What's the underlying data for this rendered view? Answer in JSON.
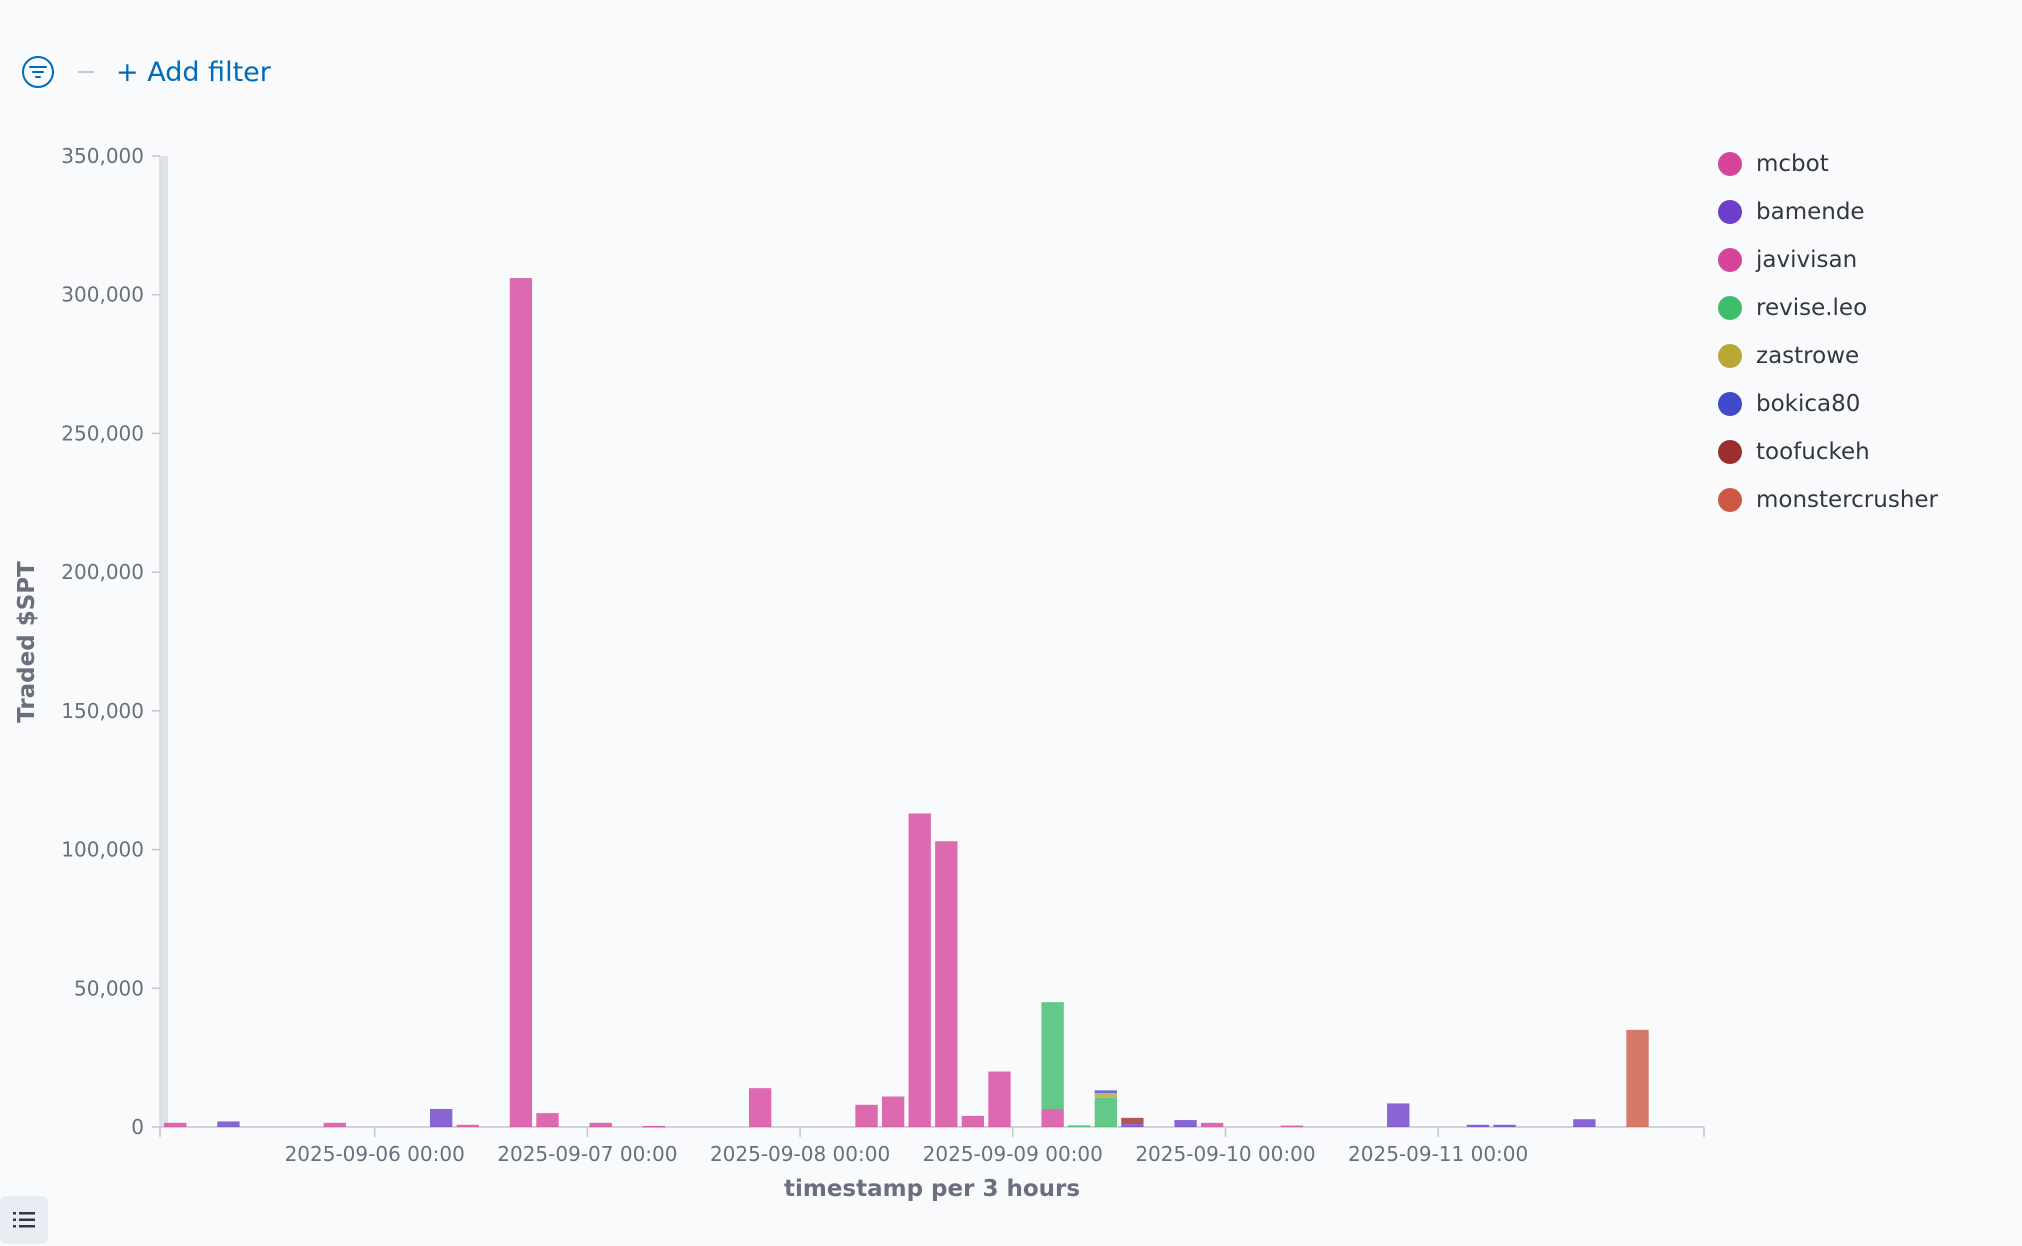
{
  "filter_bar": {
    "icon": "filter-icon",
    "add_filter_label": "+ Add filter"
  },
  "legend_toggle": {
    "icon": "list-icon"
  },
  "legend": {
    "items": [
      {
        "label": "mcbot",
        "color": "#d6459c"
      },
      {
        "label": "bamende",
        "color": "#6b3fc9"
      },
      {
        "label": "javivisan",
        "color": "#d6459c"
      },
      {
        "label": "revise.leo",
        "color": "#3ebd6a"
      },
      {
        "label": "zastrowe",
        "color": "#b9a836"
      },
      {
        "label": "bokica80",
        "color": "#3f4bc9"
      },
      {
        "label": "toofuckeh",
        "color": "#9c2e2e"
      },
      {
        "label": "monstercrusher",
        "color": "#cc5a43"
      }
    ]
  },
  "chart_data": {
    "type": "bar",
    "stacked": true,
    "xlabel": "timestamp per 3 hours",
    "ylabel": "Traded $SPT",
    "ylim": [
      0,
      350000
    ],
    "y_ticks": [
      {
        "value": 0,
        "label": "0"
      },
      {
        "value": 50000,
        "label": "50,000"
      },
      {
        "value": 100000,
        "label": "100,000"
      },
      {
        "value": 150000,
        "label": "150,000"
      },
      {
        "value": 200000,
        "label": "200,000"
      },
      {
        "value": 250000,
        "label": "250,000"
      },
      {
        "value": 300000,
        "label": "300,000"
      },
      {
        "value": 350000,
        "label": "350,000"
      }
    ],
    "x_ticks": [
      {
        "time": "2025-09-06 00:00",
        "label": "2025-09-06 00:00"
      },
      {
        "time": "2025-09-07 00:00",
        "label": "2025-09-07 00:00"
      },
      {
        "time": "2025-09-08 00:00",
        "label": "2025-09-08 00:00"
      },
      {
        "time": "2025-09-09 00:00",
        "label": "2025-09-09 00:00"
      },
      {
        "time": "2025-09-10 00:00",
        "label": "2025-09-10 00:00"
      },
      {
        "time": "2025-09-11 00:00",
        "label": "2025-09-11 00:00"
      }
    ],
    "x_range": [
      "2025-09-05 00:00",
      "2025-09-12 06:00"
    ],
    "bars": [
      {
        "time": "2025-09-05 00:00",
        "segments": [
          {
            "series": "mcbot",
            "value": 1500
          }
        ]
      },
      {
        "time": "2025-09-05 06:00",
        "segments": [
          {
            "series": "bamende",
            "value": 2000
          }
        ]
      },
      {
        "time": "2025-09-05 18:00",
        "segments": [
          {
            "series": "mcbot",
            "value": 1500
          }
        ]
      },
      {
        "time": "2025-09-06 06:00",
        "segments": [
          {
            "series": "bamende",
            "value": 6500
          }
        ]
      },
      {
        "time": "2025-09-06 09:00",
        "segments": [
          {
            "series": "mcbot",
            "value": 800
          }
        ]
      },
      {
        "time": "2025-09-06 15:00",
        "segments": [
          {
            "series": "mcbot",
            "value": 20000
          },
          {
            "series": "javivisan",
            "value": 286000
          }
        ]
      },
      {
        "time": "2025-09-06 18:00",
        "segments": [
          {
            "series": "mcbot",
            "value": 5000
          }
        ]
      },
      {
        "time": "2025-09-07 00:00",
        "segments": [
          {
            "series": "mcbot",
            "value": 1500
          }
        ]
      },
      {
        "time": "2025-09-07 06:00",
        "segments": [
          {
            "series": "mcbot",
            "value": 400
          }
        ]
      },
      {
        "time": "2025-09-07 18:00",
        "segments": [
          {
            "series": "mcbot",
            "value": 14000
          }
        ]
      },
      {
        "time": "2025-09-08 06:00",
        "segments": [
          {
            "series": "mcbot",
            "value": 8000
          }
        ]
      },
      {
        "time": "2025-09-08 09:00",
        "segments": [
          {
            "series": "mcbot",
            "value": 11000
          }
        ]
      },
      {
        "time": "2025-09-08 12:00",
        "segments": [
          {
            "series": "mcbot",
            "value": 113000
          }
        ]
      },
      {
        "time": "2025-09-08 15:00",
        "segments": [
          {
            "series": "mcbot",
            "value": 103000
          }
        ]
      },
      {
        "time": "2025-09-08 18:00",
        "segments": [
          {
            "series": "mcbot",
            "value": 4000
          }
        ]
      },
      {
        "time": "2025-09-08 21:00",
        "segments": [
          {
            "series": "mcbot",
            "value": 20000
          }
        ]
      },
      {
        "time": "2025-09-09 03:00",
        "segments": [
          {
            "series": "mcbot",
            "value": 6500
          },
          {
            "series": "revise.leo",
            "value": 38500
          }
        ]
      },
      {
        "time": "2025-09-09 06:00",
        "segments": [
          {
            "series": "revise.leo",
            "value": 600
          }
        ]
      },
      {
        "time": "2025-09-09 09:00",
        "segments": [
          {
            "series": "revise.leo",
            "value": 10500
          },
          {
            "series": "zastrowe",
            "value": 1700
          },
          {
            "series": "bokica80",
            "value": 1000
          }
        ]
      },
      {
        "time": "2025-09-09 12:00",
        "segments": [
          {
            "series": "bamende",
            "value": 1000
          },
          {
            "series": "toofuckeh",
            "value": 2300
          }
        ]
      },
      {
        "time": "2025-09-09 18:00",
        "segments": [
          {
            "series": "bamende",
            "value": 2500
          }
        ]
      },
      {
        "time": "2025-09-09 21:00",
        "segments": [
          {
            "series": "mcbot",
            "value": 1500
          }
        ]
      },
      {
        "time": "2025-09-10 06:00",
        "segments": [
          {
            "series": "mcbot",
            "value": 500
          }
        ]
      },
      {
        "time": "2025-09-10 18:00",
        "segments": [
          {
            "series": "bamende",
            "value": 8500
          }
        ]
      },
      {
        "time": "2025-09-11 03:00",
        "segments": [
          {
            "series": "bamende",
            "value": 800
          }
        ]
      },
      {
        "time": "2025-09-11 06:00",
        "segments": [
          {
            "series": "bamende",
            "value": 800
          }
        ]
      },
      {
        "time": "2025-09-11 15:00",
        "segments": [
          {
            "series": "bamende",
            "value": 2800
          }
        ]
      },
      {
        "time": "2025-09-11 21:00",
        "segments": [
          {
            "series": "monstercrusher",
            "value": 35000
          }
        ]
      }
    ]
  }
}
